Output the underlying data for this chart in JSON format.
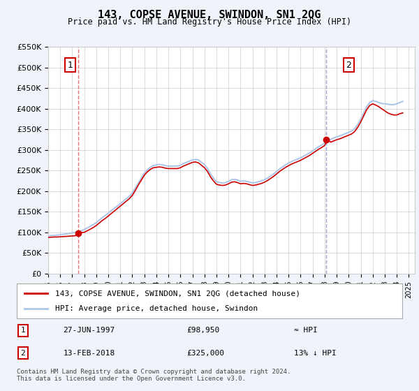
{
  "title": "143, COPSE AVENUE, SWINDON, SN1 2QG",
  "subtitle": "Price paid vs. HM Land Registry's House Price Index (HPI)",
  "ylabel": "",
  "xlim_left": 1995.0,
  "xlim_right": 2025.5,
  "ylim_bottom": 0,
  "ylim_top": 550000,
  "yticks": [
    0,
    50000,
    100000,
    150000,
    200000,
    250000,
    300000,
    350000,
    400000,
    450000,
    500000,
    550000
  ],
  "ytick_labels": [
    "£0",
    "£50K",
    "£100K",
    "£150K",
    "£200K",
    "£250K",
    "£300K",
    "£350K",
    "£400K",
    "£450K",
    "£500K",
    "£550K"
  ],
  "xticks": [
    1995,
    1996,
    1997,
    1998,
    1999,
    2000,
    2001,
    2002,
    2003,
    2004,
    2005,
    2006,
    2007,
    2008,
    2009,
    2010,
    2011,
    2012,
    2013,
    2014,
    2015,
    2016,
    2017,
    2018,
    2019,
    2020,
    2021,
    2022,
    2023,
    2024,
    2025
  ],
  "hpi_color": "#aec6e8",
  "price_color": "#cc0000",
  "vline1_color": "#e05050",
  "vline2_color": "#8888cc",
  "marker1_x": 1997.49,
  "marker1_y": 98950,
  "marker2_x": 2018.12,
  "marker2_y": 325000,
  "annotation1_label": "1",
  "annotation2_label": "2",
  "legend_label1": "143, COPSE AVENUE, SWINDON, SN1 2QG (detached house)",
  "legend_label2": "HPI: Average price, detached house, Swindon",
  "info1_num": "1",
  "info1_date": "27-JUN-1997",
  "info1_price": "£98,950",
  "info1_hpi": "≈ HPI",
  "info2_num": "2",
  "info2_date": "13-FEB-2018",
  "info2_price": "£325,000",
  "info2_hpi": "13% ↓ HPI",
  "footer": "Contains HM Land Registry data © Crown copyright and database right 2024.\nThis data is licensed under the Open Government Licence v3.0.",
  "bg_color": "#f0f4fa",
  "plot_bg_color": "#ffffff",
  "grid_color": "#cccccc",
  "hpi_data_x": [
    1995.0,
    1995.25,
    1995.5,
    1995.75,
    1996.0,
    1996.25,
    1996.5,
    1996.75,
    1997.0,
    1997.25,
    1997.5,
    1997.75,
    1998.0,
    1998.25,
    1998.5,
    1998.75,
    1999.0,
    1999.25,
    1999.5,
    1999.75,
    2000.0,
    2000.25,
    2000.5,
    2000.75,
    2001.0,
    2001.25,
    2001.5,
    2001.75,
    2002.0,
    2002.25,
    2002.5,
    2002.75,
    2003.0,
    2003.25,
    2003.5,
    2003.75,
    2004.0,
    2004.25,
    2004.5,
    2004.75,
    2005.0,
    2005.25,
    2005.5,
    2005.75,
    2006.0,
    2006.25,
    2006.5,
    2006.75,
    2007.0,
    2007.25,
    2007.5,
    2007.75,
    2008.0,
    2008.25,
    2008.5,
    2008.75,
    2009.0,
    2009.25,
    2009.5,
    2009.75,
    2010.0,
    2010.25,
    2010.5,
    2010.75,
    2011.0,
    2011.25,
    2011.5,
    2011.75,
    2012.0,
    2012.25,
    2012.5,
    2012.75,
    2013.0,
    2013.25,
    2013.5,
    2013.75,
    2014.0,
    2014.25,
    2014.5,
    2014.75,
    2015.0,
    2015.25,
    2015.5,
    2015.75,
    2016.0,
    2016.25,
    2016.5,
    2016.75,
    2017.0,
    2017.25,
    2017.5,
    2017.75,
    2018.0,
    2018.25,
    2018.5,
    2018.75,
    2019.0,
    2019.25,
    2019.5,
    2019.75,
    2020.0,
    2020.25,
    2020.5,
    2020.75,
    2021.0,
    2021.25,
    2021.5,
    2021.75,
    2022.0,
    2022.25,
    2022.5,
    2022.75,
    2023.0,
    2023.25,
    2023.5,
    2023.75,
    2024.0,
    2024.25,
    2024.5
  ],
  "hpi_data_y": [
    92000,
    92500,
    93000,
    93500,
    94500,
    95500,
    96500,
    97500,
    99000,
    100500,
    102000,
    104000,
    107000,
    111000,
    115000,
    119000,
    124000,
    130000,
    136000,
    141000,
    147000,
    153000,
    159000,
    164000,
    170000,
    176000,
    182000,
    188000,
    196000,
    208000,
    220000,
    232000,
    244000,
    252000,
    258000,
    262000,
    264000,
    265000,
    264000,
    262000,
    261000,
    261000,
    261000,
    261000,
    263000,
    267000,
    270000,
    273000,
    276000,
    277000,
    276000,
    270000,
    265000,
    255000,
    242000,
    232000,
    223000,
    221000,
    220000,
    221000,
    224000,
    228000,
    229000,
    227000,
    224000,
    225000,
    224000,
    222000,
    220000,
    221000,
    223000,
    225000,
    228000,
    232000,
    237000,
    242000,
    248000,
    254000,
    259000,
    264000,
    268000,
    272000,
    275000,
    278000,
    281000,
    285000,
    289000,
    293000,
    298000,
    303000,
    308000,
    312000,
    317000,
    322000,
    326000,
    329000,
    332000,
    334000,
    337000,
    340000,
    343000,
    346000,
    352000,
    362000,
    375000,
    390000,
    405000,
    415000,
    420000,
    418000,
    415000,
    413000,
    412000,
    411000,
    410000,
    410000,
    412000,
    415000,
    418000
  ],
  "price_data_x": [
    1995.0,
    1995.25,
    1995.5,
    1995.75,
    1996.0,
    1996.25,
    1996.5,
    1996.75,
    1997.0,
    1997.25,
    1997.5,
    1997.75,
    1998.0,
    1998.25,
    1998.5,
    1998.75,
    1999.0,
    1999.25,
    1999.5,
    1999.75,
    2000.0,
    2000.25,
    2000.5,
    2000.75,
    2001.0,
    2001.25,
    2001.5,
    2001.75,
    2002.0,
    2002.25,
    2002.5,
    2002.75,
    2003.0,
    2003.25,
    2003.5,
    2003.75,
    2004.0,
    2004.25,
    2004.5,
    2004.75,
    2005.0,
    2005.25,
    2005.5,
    2005.75,
    2006.0,
    2006.25,
    2006.5,
    2006.75,
    2007.0,
    2007.25,
    2007.5,
    2007.75,
    2008.0,
    2008.25,
    2008.5,
    2008.75,
    2009.0,
    2009.25,
    2009.5,
    2009.75,
    2010.0,
    2010.25,
    2010.5,
    2010.75,
    2011.0,
    2011.25,
    2011.5,
    2011.75,
    2012.0,
    2012.25,
    2012.5,
    2012.75,
    2013.0,
    2013.25,
    2013.5,
    2013.75,
    2014.0,
    2014.25,
    2014.5,
    2014.75,
    2015.0,
    2015.25,
    2015.5,
    2015.75,
    2016.0,
    2016.25,
    2016.5,
    2016.75,
    2017.0,
    2017.25,
    2017.5,
    2017.75,
    2018.0,
    2018.25,
    2018.5,
    2018.75,
    2019.0,
    2019.25,
    2019.5,
    2019.75,
    2020.0,
    2020.25,
    2020.5,
    2020.75,
    2021.0,
    2021.25,
    2021.5,
    2021.75,
    2022.0,
    2022.25,
    2022.5,
    2022.75,
    2023.0,
    2023.25,
    2023.5,
    2023.75,
    2024.0,
    2024.25,
    2024.5
  ],
  "price_data_y": [
    88000,
    88500,
    89000,
    89000,
    89500,
    90000,
    90500,
    91000,
    91500,
    92000,
    98950,
    99500,
    100500,
    104000,
    108000,
    112000,
    117000,
    123000,
    129000,
    134000,
    140000,
    146000,
    152000,
    158000,
    164000,
    170000,
    176000,
    182000,
    190000,
    202000,
    215000,
    227000,
    239000,
    247000,
    253000,
    257000,
    258000,
    259000,
    258000,
    256000,
    255000,
    255000,
    255000,
    255000,
    257000,
    261000,
    264000,
    267000,
    270000,
    271000,
    269000,
    263000,
    257000,
    248000,
    235000,
    225000,
    217000,
    215000,
    214000,
    215000,
    218000,
    222000,
    223000,
    221000,
    218000,
    219000,
    218000,
    216000,
    214000,
    215000,
    217000,
    219000,
    222000,
    226000,
    231000,
    236000,
    242000,
    248000,
    253000,
    258000,
    262000,
    266000,
    269000,
    272000,
    275000,
    279000,
    283000,
    287000,
    292000,
    297000,
    302000,
    306000,
    311000,
    325000,
    319000,
    322000,
    325000,
    327000,
    330000,
    333000,
    336000,
    339000,
    345000,
    355000,
    368000,
    383000,
    398000,
    408000,
    412000,
    409000,
    405000,
    400000,
    395000,
    390000,
    387000,
    385000,
    385000,
    388000,
    390000
  ]
}
